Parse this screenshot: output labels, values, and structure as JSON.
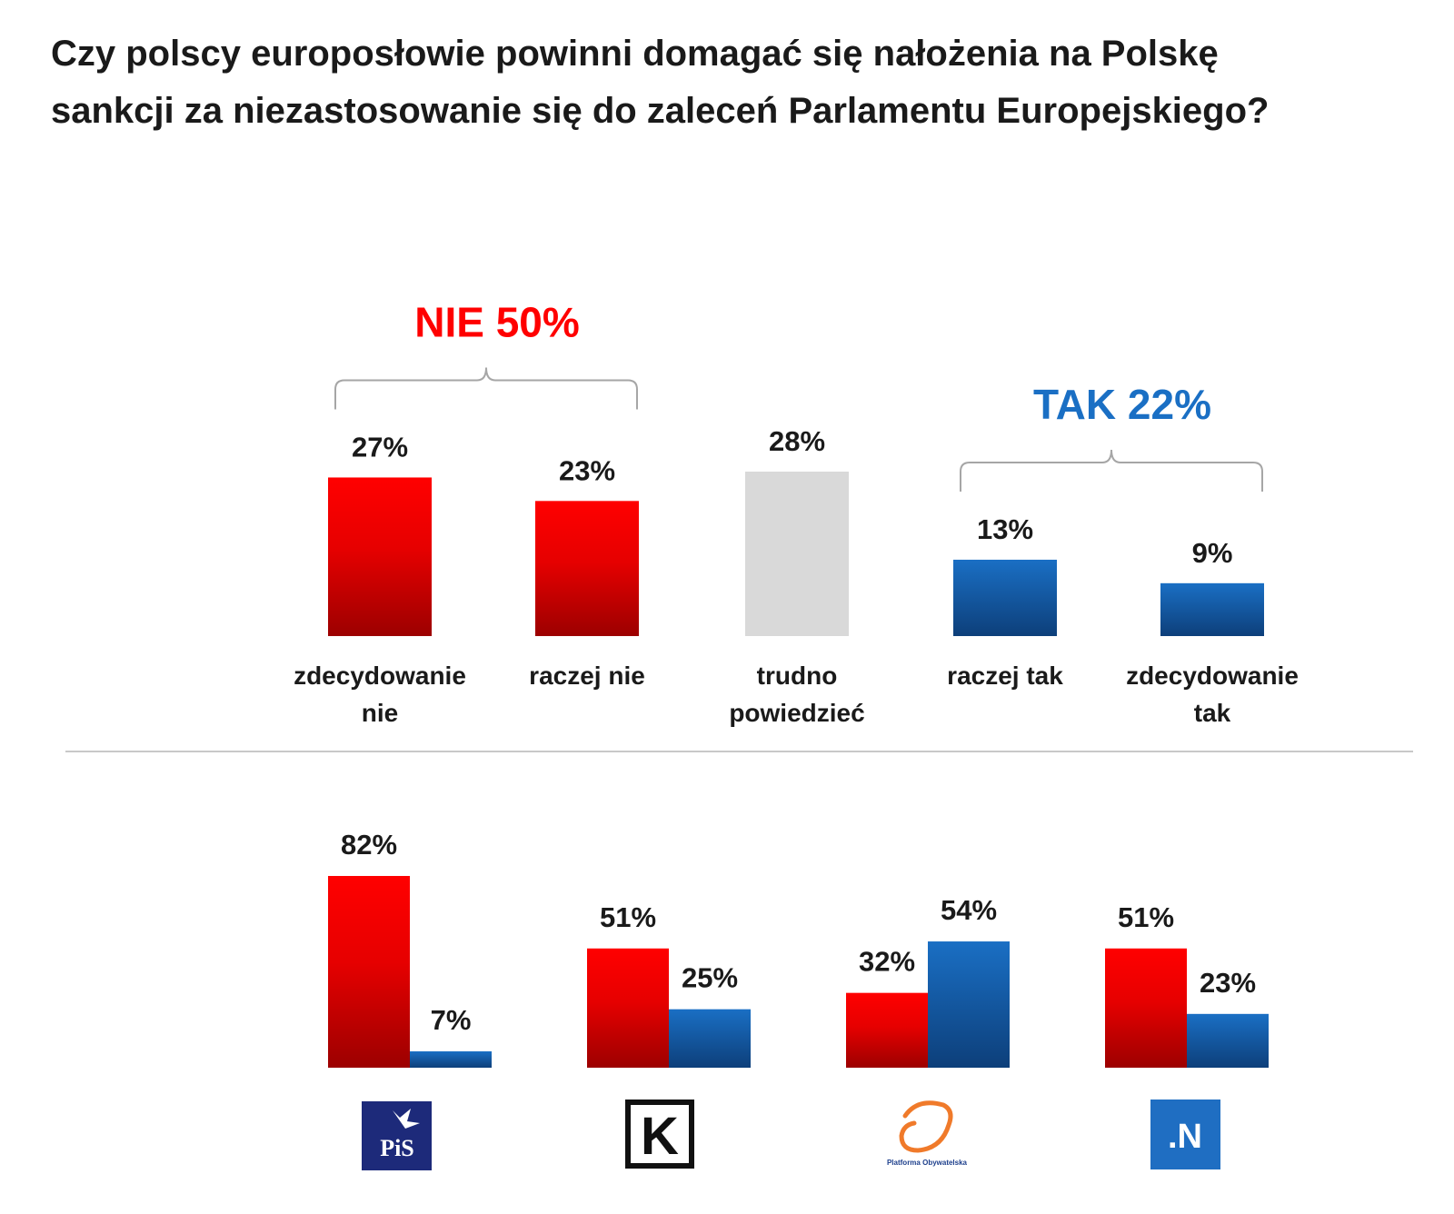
{
  "title": {
    "line1": "Czy polscy europosłowie powinni domagać się nałożenia na Polskę",
    "line2": "sankcji za niezastosowanie się do zaleceń Parlamentu Europejskiego?"
  },
  "colors": {
    "red": "#ff0000",
    "blue": "#1a6fc4",
    "gray": "#d9d9d9",
    "red_label": "#ff0000",
    "blue_label": "#1a6fc4"
  },
  "chart_data": [
    {
      "type": "bar",
      "title": "Czy polscy europosłowie powinni domagać się nałożenia na Polskę sankcji za niezastosowanie się do zaleceń Parlamentu Europejskiego?",
      "categories": [
        [
          "zdecydowanie",
          "nie"
        ],
        [
          "raczej nie"
        ],
        [
          "trudno",
          "powiedzieć"
        ],
        [
          "raczej tak"
        ],
        [
          "zdecydowanie",
          "tak"
        ]
      ],
      "values": [
        27,
        23,
        28,
        13,
        9
      ],
      "value_labels": [
        "27%",
        "23%",
        "28%",
        "13%",
        "9%"
      ],
      "bar_colors": [
        "red",
        "red",
        "gray",
        "blue",
        "blue"
      ],
      "unit": "%",
      "ylim": [
        0,
        28
      ],
      "groups": [
        {
          "label": "NIE 50%",
          "color": "red",
          "from": 0,
          "to": 1
        },
        {
          "label": "TAK 22%",
          "color": "blue",
          "from": 3,
          "to": 4
        }
      ]
    },
    {
      "type": "bar",
      "categories": [
        "PiS",
        "Kukiz'15",
        "Platforma Obywatelska",
        "Nowoczesna"
      ],
      "series": [
        {
          "name": "nie",
          "color": "red",
          "values": [
            82,
            51,
            32,
            51
          ],
          "labels": [
            "82%",
            "51%",
            "32%",
            "51%"
          ]
        },
        {
          "name": "tak",
          "color": "blue",
          "values": [
            7,
            25,
            54,
            23
          ],
          "labels": [
            "7%",
            "25%",
            "54%",
            "23%"
          ]
        }
      ],
      "unit": "%",
      "ylim": [
        0,
        82
      ]
    }
  ],
  "logos": [
    {
      "name": "pis-logo",
      "text": "PiS"
    },
    {
      "name": "kukiz-logo",
      "text": "K"
    },
    {
      "name": "po-logo",
      "text": "Platforma Obywatelska"
    },
    {
      "name": "nowoczesna-logo",
      "text": ".N"
    }
  ]
}
